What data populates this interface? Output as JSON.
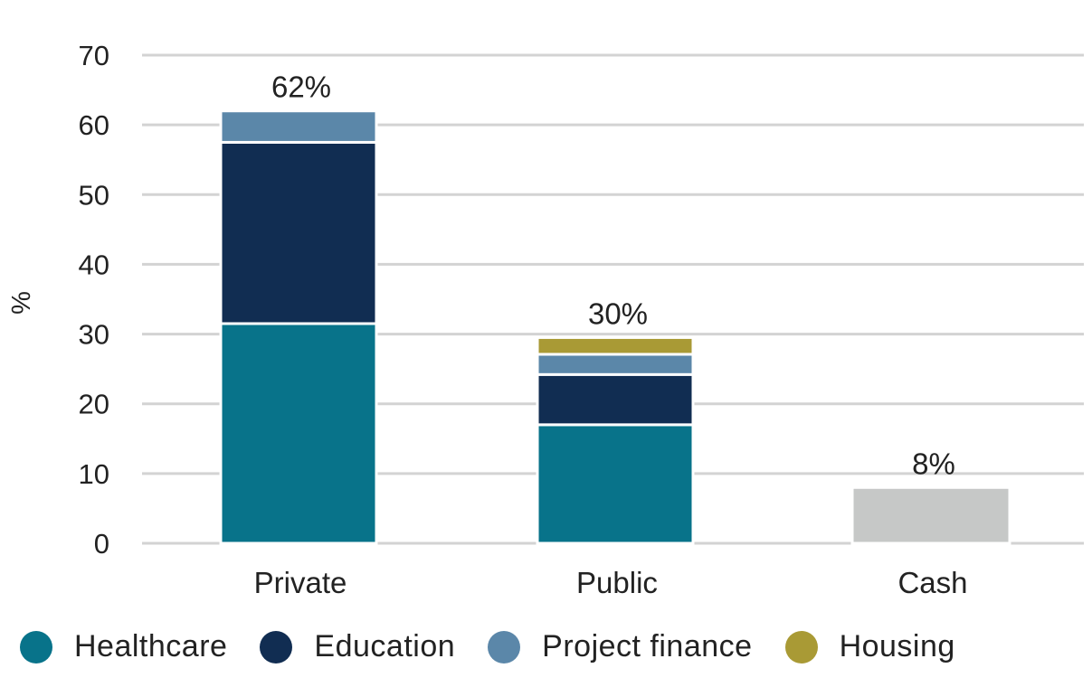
{
  "chart_data": {
    "type": "bar",
    "stacked": true,
    "ylabel": "%",
    "ylim": [
      0,
      70
    ],
    "yticks": [
      0,
      10,
      20,
      30,
      40,
      50,
      60,
      70
    ],
    "grid": true,
    "legend_position": "bottom",
    "categories": [
      "Private",
      "Public",
      "Cash"
    ],
    "totals": [
      "62%",
      "30%",
      "8%"
    ],
    "series": [
      {
        "name": "Healthcare",
        "color": "#08738a",
        "values": [
          31.5,
          17,
          0
        ]
      },
      {
        "name": "Education",
        "color": "#112d52",
        "values": [
          26,
          7.2,
          0
        ]
      },
      {
        "name": "Project finance",
        "color": "#5b87a9",
        "values": [
          4.5,
          2.9,
          0
        ]
      },
      {
        "name": "Housing",
        "color": "#a99a35",
        "values": [
          0,
          2.4,
          0
        ]
      },
      {
        "name": "",
        "color": "#c6c8c7",
        "values": [
          0,
          0,
          8
        ]
      }
    ]
  }
}
